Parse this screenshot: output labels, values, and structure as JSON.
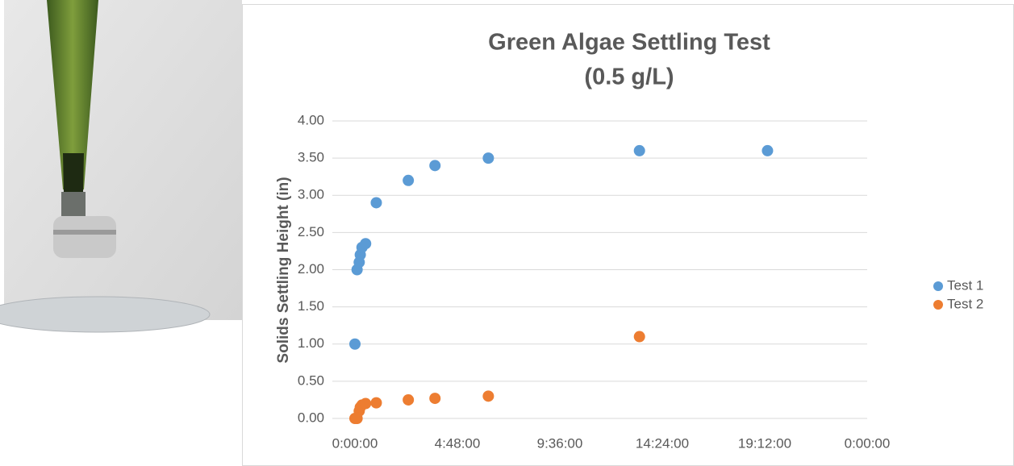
{
  "chart_data": {
    "type": "scatter",
    "title": "Green Algae Settling Test",
    "subtitle": "(0.5 g/L)",
    "y_label": "Solids Settling Height (in)",
    "xlim": [
      0,
      24
    ],
    "xticks": [
      {
        "value": 0,
        "label": "0:00:00"
      },
      {
        "value": 4.8,
        "label": "4:48:00"
      },
      {
        "value": 9.6,
        "label": "9:36:00"
      },
      {
        "value": 14.4,
        "label": "14:24:00"
      },
      {
        "value": 19.2,
        "label": "19:12:00"
      },
      {
        "value": 24,
        "label": "0:00:00"
      }
    ],
    "ylim": [
      0,
      4
    ],
    "yticks": [
      {
        "value": 0,
        "label": "0.00"
      },
      {
        "value": 0.5,
        "label": "0.50"
      },
      {
        "value": 1,
        "label": "1.00"
      },
      {
        "value": 1.5,
        "label": "1.50"
      },
      {
        "value": 2,
        "label": "2.00"
      },
      {
        "value": 2.5,
        "label": "2.50"
      },
      {
        "value": 3,
        "label": "3.00"
      },
      {
        "value": 3.5,
        "label": "3.50"
      },
      {
        "value": 4,
        "label": "4.00"
      }
    ],
    "grid": true,
    "legend": "right",
    "series": [
      {
        "name": "Test 1",
        "color": "#5b9bd5",
        "x": [
          0,
          0.1,
          0.2,
          0.25,
          0.33,
          0.5,
          1,
          2.5,
          3.75,
          6.25,
          13.33,
          19.33
        ],
        "values": [
          1.0,
          2.0,
          2.1,
          2.2,
          2.3,
          2.35,
          2.9,
          3.2,
          3.4,
          3.5,
          3.6,
          3.6
        ]
      },
      {
        "name": "Test 2",
        "color": "#ed7d31",
        "x": [
          0,
          0.1,
          0.2,
          0.25,
          0.33,
          0.5,
          1,
          2.5,
          3.75,
          6.25,
          13.33
        ],
        "values": [
          0,
          0,
          0.1,
          0.15,
          0.18,
          0.2,
          0.21,
          0.25,
          0.27,
          0.3,
          1.1
        ]
      }
    ]
  }
}
